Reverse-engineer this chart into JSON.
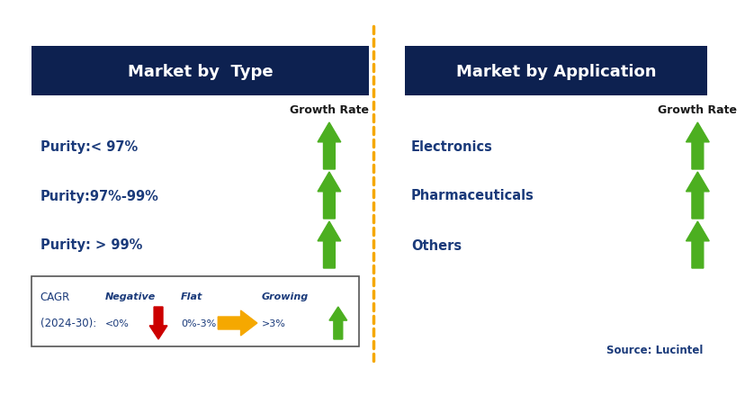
{
  "title_left": "Market by  Type",
  "title_right": "Market by Application",
  "title_bg_color": "#0d2150",
  "title_text_color": "#ffffff",
  "left_items": [
    "Purity:< 97%",
    "Purity:97%-99%",
    "Purity: > 99%"
  ],
  "right_items": [
    "Electronics",
    "Pharmaceuticals",
    "Others"
  ],
  "item_text_color": "#1a3a7a",
  "growth_rate_label": "Growth Rate",
  "growth_rate_color": "#1a1a1a",
  "arrow_color_green": "#4caf20",
  "arrow_color_red": "#cc0000",
  "arrow_color_yellow": "#f5a800",
  "divider_color": "#f5a800",
  "legend_text_color": "#1a3a7a",
  "source_text": "Source: Lucintel",
  "source_color": "#1a3a7a",
  "legend_cagr_line1": "CAGR",
  "legend_cagr_line2": "(2024-30):",
  "legend_negative_label": "Negative",
  "legend_negative_sub": "<0%",
  "legend_flat_label": "Flat",
  "legend_flat_sub": "0%-3%",
  "legend_growing_label": "Growing",
  "legend_growing_sub": ">3%",
  "bg_color": "#ffffff"
}
